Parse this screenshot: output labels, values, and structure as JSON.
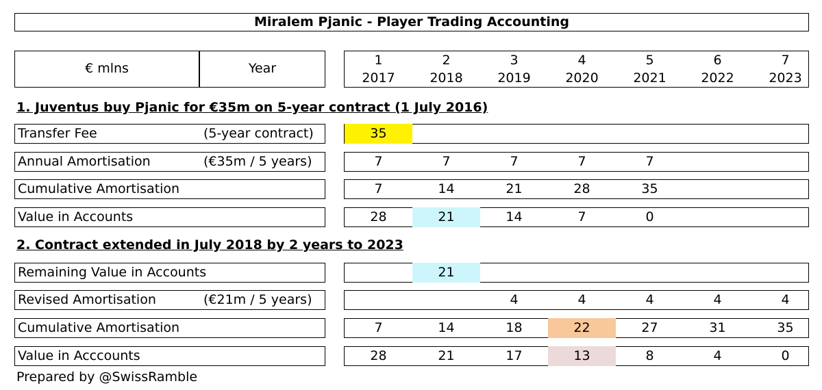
{
  "title": "Miralem Pjanic - Player Trading Accounting",
  "header": {
    "currency_label": "€ mlns",
    "year_label": "Year",
    "columns": [
      {
        "n": "1",
        "year": "2017"
      },
      {
        "n": "2",
        "year": "2018"
      },
      {
        "n": "3",
        "year": "2019"
      },
      {
        "n": "4",
        "year": "2020"
      },
      {
        "n": "5",
        "year": "2021"
      },
      {
        "n": "6",
        "year": "2022"
      },
      {
        "n": "7",
        "year": "2023"
      }
    ]
  },
  "section1": {
    "title": "1. Juventus buy Pjanic for €35m on 5-year contract (1 July 2016)",
    "rows": [
      {
        "label": "Transfer Fee",
        "note": "(5-year contract)",
        "values": [
          "35",
          "",
          "",
          "",
          "",
          "",
          ""
        ],
        "highlights": [
          "#fff200",
          "",
          "",
          "",
          "",
          "",
          ""
        ]
      },
      {
        "label": "Annual Amortisation",
        "note": "(€35m / 5 years)",
        "values": [
          "7",
          "7",
          "7",
          "7",
          "7",
          "",
          ""
        ],
        "highlights": [
          "",
          "",
          "",
          "",
          "",
          "",
          ""
        ]
      },
      {
        "label": "Cumulative Amortisation",
        "note": "",
        "values": [
          "7",
          "14",
          "21",
          "28",
          "35",
          "",
          ""
        ],
        "highlights": [
          "",
          "",
          "",
          "",
          "",
          "",
          ""
        ]
      },
      {
        "label": "Value in Accounts",
        "note": "",
        "values": [
          "28",
          "21",
          "14",
          "7",
          "0",
          "",
          ""
        ],
        "highlights": [
          "",
          "#ccf6fb",
          "",
          "",
          "",
          "",
          ""
        ]
      }
    ]
  },
  "section2": {
    "title": "2. Contract extended in July 2018 by 2 years to 2023",
    "rows": [
      {
        "label": "Remaining Value in Accounts",
        "note": "",
        "values": [
          "",
          "21",
          "",
          "",
          "",
          "",
          ""
        ],
        "highlights": [
          "",
          "#ccf6fb",
          "",
          "",
          "",
          "",
          ""
        ]
      },
      {
        "label": "Revised Amortisation",
        "note": "(€21m / 5 years)",
        "values": [
          "",
          "",
          "4",
          "4",
          "4",
          "4",
          "4"
        ],
        "highlights": [
          "",
          "",
          "",
          "",
          "",
          "",
          ""
        ]
      },
      {
        "label": "Cumulative Amortisation",
        "note": "",
        "values": [
          "7",
          "14",
          "18",
          "22",
          "27",
          "31",
          "35"
        ],
        "highlights": [
          "",
          "",
          "",
          "#f8c79a",
          "",
          "",
          ""
        ]
      },
      {
        "label": "Value in Acccounts",
        "note": "",
        "values": [
          "28",
          "21",
          "17",
          "13",
          "8",
          "4",
          "0"
        ],
        "highlights": [
          "",
          "",
          "",
          "#ecd9da",
          "",
          "",
          ""
        ]
      }
    ]
  },
  "footer": "Prepared by @SwissRamble"
}
